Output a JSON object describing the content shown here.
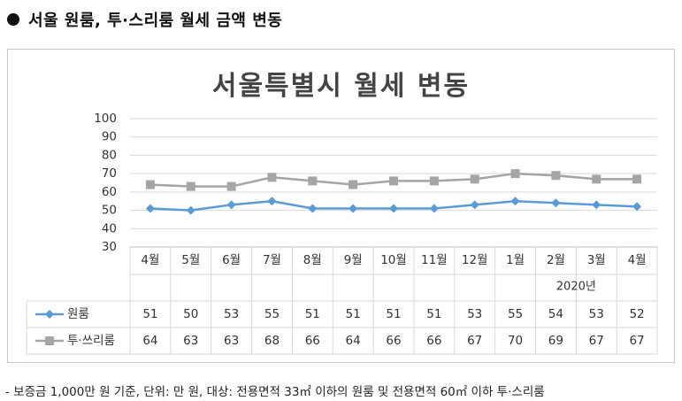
{
  "heading": "서울 원룸, 투·스리룸 월세 금액 변동",
  "note": "- 보증금 1,000만 원 기준, 단위: 만 원, 대상: 전용면적 33㎡ 이하의 원룸 및 전용면적 60㎡ 이하 투·스리룸",
  "colors": {
    "one_room": "#5b9bd5",
    "two_three_room": "#a5a5a5",
    "grid": "#d9d9d9",
    "title": "#444444"
  },
  "chart_data": {
    "type": "line",
    "title": "서울특별시 월세 변동",
    "categories": [
      "4월",
      "5월",
      "6월",
      "7월",
      "8월",
      "9월",
      "10월",
      "11월",
      "12월",
      "1월",
      "2월",
      "3월",
      "4월"
    ],
    "year_label": "2020년",
    "ylim": [
      30,
      100
    ],
    "yticks": [
      30,
      40,
      50,
      60,
      70,
      80,
      90,
      100
    ],
    "grid": true,
    "legend": "data-table",
    "series": [
      {
        "name": "원룸",
        "marker": "diamond",
        "values": [
          51,
          50,
          53,
          55,
          51,
          51,
          51,
          51,
          53,
          55,
          54,
          53,
          52
        ]
      },
      {
        "name": "투·쓰리룸",
        "marker": "square",
        "values": [
          64,
          63,
          63,
          68,
          66,
          64,
          66,
          66,
          67,
          70,
          69,
          67,
          67
        ]
      }
    ]
  }
}
